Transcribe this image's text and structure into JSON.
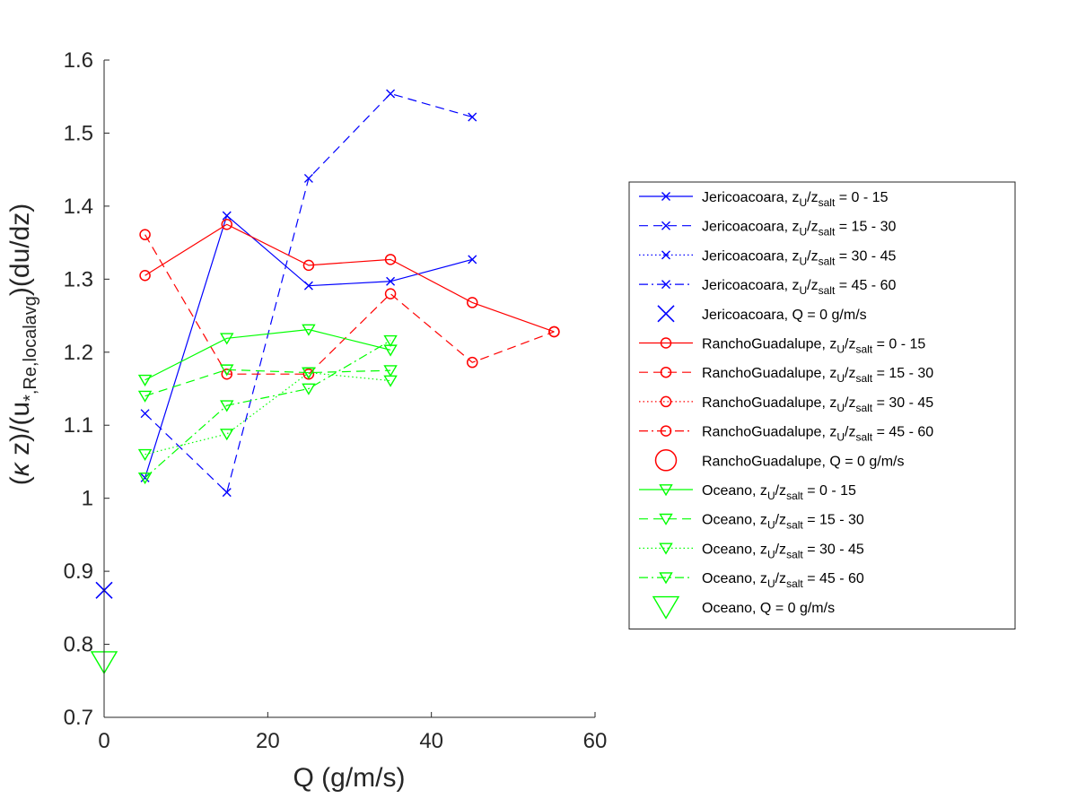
{
  "chart_data": {
    "type": "line",
    "xlabel": "Q (g/m/s)",
    "ylabel_parts": [
      "(",
      "κ",
      " z)/(u",
      "*,Re,localavg",
      ")(du/dz)"
    ],
    "xlim": [
      0,
      60
    ],
    "ylim": [
      0.7,
      1.6
    ],
    "xticks": [
      0,
      20,
      40,
      60
    ],
    "xtick_labels": [
      "0",
      "20",
      "40",
      "60"
    ],
    "yticks": [
      0.7,
      0.8,
      0.9,
      1.0,
      1.1,
      1.2,
      1.3,
      1.4,
      1.5,
      1.6
    ],
    "ytick_labels": [
      "0.7",
      "0.8",
      "0.9",
      "1",
      "1.1",
      "1.2",
      "1.3",
      "1.4",
      "1.5",
      "1.6"
    ],
    "grid": false,
    "legend_position": "right",
    "colors": {
      "Jericoacoara": "#0000ff",
      "RanchoGuadalupe": "#ff0000",
      "Oceano": "#00ff00"
    },
    "series": [
      {
        "site": "Jericoacoara",
        "name": "Jericoacoara, zU/zsalt = 0 - 15",
        "range": "0 - 15",
        "color": "#0000ff",
        "marker": "x",
        "dash": "solid",
        "x": [
          5,
          15,
          25,
          35,
          45
        ],
        "y": [
          1.028,
          1.387,
          1.291,
          1.297,
          1.327
        ]
      },
      {
        "site": "Jericoacoara",
        "name": "Jericoacoara, zU/zsalt = 15 - 30",
        "range": "15 - 30",
        "color": "#0000ff",
        "marker": "x",
        "dash": "dashed",
        "x": [
          5,
          15,
          25,
          35,
          45
        ],
        "y": [
          1.116,
          1.008,
          1.438,
          1.554,
          1.522
        ]
      },
      {
        "site": "Jericoacoara",
        "name": "Jericoacoara, zU/zsalt = 30 - 45",
        "range": "30 - 45",
        "color": "#0000ff",
        "marker": "x",
        "dash": "dotted",
        "x": [],
        "y": []
      },
      {
        "site": "Jericoacoara",
        "name": "Jericoacoara, zU/zsalt = 45 - 60",
        "range": "45 - 60",
        "color": "#0000ff",
        "marker": "x",
        "dash": "dashdot",
        "x": [],
        "y": []
      },
      {
        "site": "Jericoacoara",
        "name": "Jericoacoara, Q = 0 g/m/s",
        "range": null,
        "color": "#0000ff",
        "marker": "X",
        "dash": "none",
        "x": [
          0
        ],
        "y": [
          0.874
        ]
      },
      {
        "site": "RanchoGuadalupe",
        "name": "RanchoGuadalupe, zU/zsalt = 0 - 15",
        "range": "0 - 15",
        "color": "#ff0000",
        "marker": "o",
        "dash": "solid",
        "x": [
          5,
          15,
          25,
          35,
          45,
          55
        ],
        "y": [
          1.305,
          1.375,
          1.319,
          1.327,
          1.268,
          1.228
        ]
      },
      {
        "site": "RanchoGuadalupe",
        "name": "RanchoGuadalupe, zU/zsalt = 15 - 30",
        "range": "15 - 30",
        "color": "#ff0000",
        "marker": "o",
        "dash": "dashed",
        "x": [
          5,
          15,
          25,
          35,
          45,
          55
        ],
        "y": [
          1.361,
          1.17,
          1.17,
          1.28,
          1.186,
          1.228
        ]
      },
      {
        "site": "RanchoGuadalupe",
        "name": "RanchoGuadalupe, zU/zsalt = 30 - 45",
        "range": "30 - 45",
        "color": "#ff0000",
        "marker": "o",
        "dash": "dotted",
        "x": [],
        "y": []
      },
      {
        "site": "RanchoGuadalupe",
        "name": "RanchoGuadalupe, zU/zsalt = 45 - 60",
        "range": "45 - 60",
        "color": "#ff0000",
        "marker": "o",
        "dash": "dashdot",
        "x": [],
        "y": []
      },
      {
        "site": "RanchoGuadalupe",
        "name": "RanchoGuadalupe, Q = 0 g/m/s",
        "range": null,
        "color": "#ff0000",
        "marker": "O",
        "dash": "none",
        "x": [],
        "y": []
      },
      {
        "site": "Oceano",
        "name": "Oceano, zU/zsalt = 0 - 15",
        "range": "0 - 15",
        "color": "#00ff00",
        "marker": "v",
        "dash": "solid",
        "x": [
          5,
          15,
          25,
          35
        ],
        "y": [
          1.162,
          1.219,
          1.231,
          1.203
        ]
      },
      {
        "site": "Oceano",
        "name": "Oceano, zU/zsalt = 15 - 30",
        "range": "15 - 30",
        "color": "#00ff00",
        "marker": "v",
        "dash": "dashed",
        "x": [
          5,
          15,
          25,
          35
        ],
        "y": [
          1.14,
          1.176,
          1.172,
          1.175
        ]
      },
      {
        "site": "Oceano",
        "name": "Oceano, zU/zsalt = 30 - 45",
        "range": "30 - 45",
        "color": "#00ff00",
        "marker": "v",
        "dash": "dotted",
        "x": [
          5,
          15,
          25,
          35
        ],
        "y": [
          1.06,
          1.088,
          1.172,
          1.161
        ]
      },
      {
        "site": "Oceano",
        "name": "Oceano, zU/zsalt = 45 - 60",
        "range": "45 - 60",
        "color": "#00ff00",
        "marker": "v",
        "dash": "dashdot",
        "x": [
          5,
          15,
          25,
          35
        ],
        "y": [
          1.028,
          1.127,
          1.15,
          1.216
        ]
      },
      {
        "site": "Oceano",
        "name": "Oceano, Q = 0 g/m/s",
        "range": null,
        "color": "#00ff00",
        "marker": "V",
        "dash": "none",
        "x": [
          0
        ],
        "y": [
          0.776
        ]
      }
    ]
  }
}
